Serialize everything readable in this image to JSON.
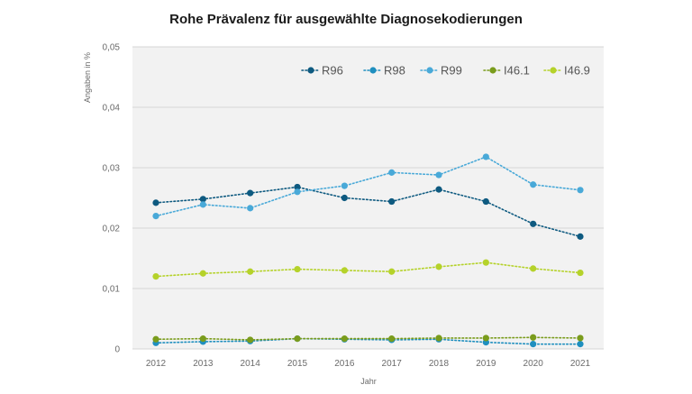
{
  "chart_data": {
    "type": "line",
    "title": "Rohe Prävalenz für ausgewählte Diagnosekodierungen",
    "xlabel": "Jahr",
    "ylabel": "Angaben in %",
    "categories": [
      "2012",
      "2013",
      "2014",
      "2015",
      "2016",
      "2017",
      "2018",
      "2019",
      "2020",
      "2021"
    ],
    "ylim": [
      0,
      0.05
    ],
    "yticks": [
      0,
      0.01,
      0.02,
      0.03,
      0.04,
      0.05
    ],
    "ytick_labels": [
      "0",
      "0,01",
      "0,02",
      "0,03",
      "0,04",
      "0,05"
    ],
    "grid": true,
    "legend_position": "top",
    "series": [
      {
        "name": "R96",
        "color": "#0e5a80",
        "values": [
          0.0242,
          0.0248,
          0.0258,
          0.0268,
          0.025,
          0.0244,
          0.0264,
          0.0244,
          0.0207,
          0.0186
        ]
      },
      {
        "name": "R98",
        "color": "#1f8fbf",
        "values": [
          0.001,
          0.0012,
          0.0013,
          0.0017,
          0.0016,
          0.0015,
          0.0016,
          0.0011,
          0.0008,
          0.0008
        ]
      },
      {
        "name": "R99",
        "color": "#49a9d8",
        "values": [
          0.022,
          0.0239,
          0.0233,
          0.026,
          0.027,
          0.0292,
          0.0288,
          0.0318,
          0.0272,
          0.0263
        ]
      },
      {
        "name": "I46.1",
        "color": "#7a9c1c",
        "values": [
          0.0016,
          0.0017,
          0.0015,
          0.0017,
          0.0017,
          0.0017,
          0.0018,
          0.0018,
          0.0019,
          0.0018
        ]
      },
      {
        "name": "I46.9",
        "color": "#b5d22a",
        "values": [
          0.012,
          0.0125,
          0.0128,
          0.0132,
          0.013,
          0.0128,
          0.0136,
          0.0143,
          0.0133,
          0.0126
        ]
      }
    ]
  }
}
